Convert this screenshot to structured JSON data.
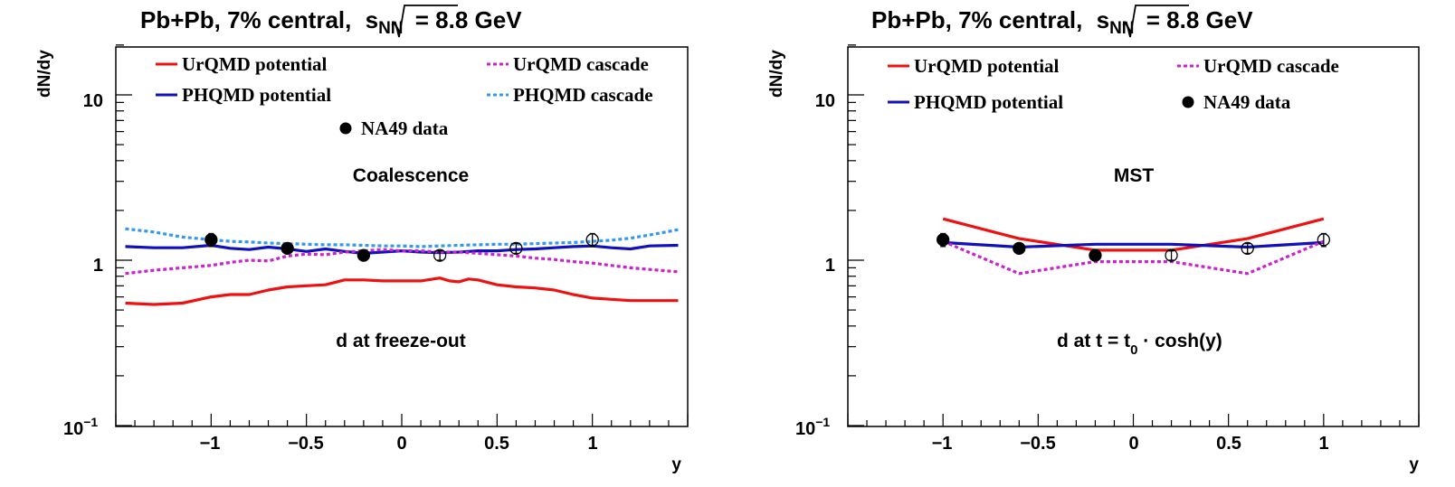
{
  "chart_data": [
    {
      "type": "line",
      "title": "Pb+Pb, 7% central, √sNN = 8.8 GeV",
      "title_parts": {
        "prefix": "Pb+Pb, 7% central,",
        "var": "s",
        "sub": "NN",
        "suffix": "= 8.8 GeV"
      },
      "xlabel": "y",
      "ylabel": "dN/dy",
      "xlim": [
        -1.5,
        1.5
      ],
      "ylim": [
        0.1,
        20
      ],
      "yscale": "log",
      "x_tick_labels": [
        "−1",
        "−0.5",
        "0",
        "0.5",
        "1"
      ],
      "y_tick_labels": {
        "top": "10",
        "mid": "1",
        "bottom_base": "10",
        "bottom_exp": "−1"
      },
      "annotations": {
        "method": "Coalescence",
        "condition": "d at freeze-out"
      },
      "legend": [
        {
          "name": "UrQMD potential",
          "color": "#ee1111",
          "style": "solid"
        },
        {
          "name": "UrQMD cascade",
          "color": "#cc22cc",
          "style": "dotted"
        },
        {
          "name": "PHQMD potential",
          "color": "#1111bb",
          "style": "solid"
        },
        {
          "name": "PHQMD cascade",
          "color": "#3399ee",
          "style": "dotted"
        },
        {
          "name": "NA49 data",
          "color": "#000000",
          "style": "marker"
        }
      ],
      "series": [
        {
          "name": "PHQMD cascade",
          "color": "#3399ee",
          "dashed": true,
          "x": [
            -1.45,
            -1.3,
            -1.15,
            -1.0,
            -0.9,
            -0.8,
            -0.7,
            -0.6,
            -0.5,
            -0.4,
            -0.3,
            -0.2,
            -0.1,
            0.0,
            0.1,
            0.2,
            0.3,
            0.4,
            0.5,
            0.6,
            0.7,
            0.8,
            0.9,
            1.0,
            1.1,
            1.2,
            1.3,
            1.45
          ],
          "y": [
            1.55,
            1.48,
            1.38,
            1.33,
            1.3,
            1.29,
            1.27,
            1.26,
            1.25,
            1.24,
            1.24,
            1.23,
            1.22,
            1.22,
            1.21,
            1.22,
            1.23,
            1.24,
            1.25,
            1.25,
            1.26,
            1.27,
            1.28,
            1.3,
            1.32,
            1.36,
            1.42,
            1.53
          ]
        },
        {
          "name": "PHQMD potential",
          "color": "#1111bb",
          "dashed": false,
          "x": [
            -1.45,
            -1.3,
            -1.15,
            -1.0,
            -0.9,
            -0.8,
            -0.7,
            -0.6,
            -0.5,
            -0.4,
            -0.3,
            -0.2,
            -0.1,
            0.0,
            0.1,
            0.2,
            0.3,
            0.4,
            0.5,
            0.6,
            0.7,
            0.8,
            0.9,
            1.0,
            1.1,
            1.2,
            1.3,
            1.45
          ],
          "y": [
            1.21,
            1.19,
            1.19,
            1.23,
            1.18,
            1.16,
            1.2,
            1.17,
            1.13,
            1.17,
            1.13,
            1.1,
            1.12,
            1.14,
            1.12,
            1.11,
            1.12,
            1.14,
            1.14,
            1.16,
            1.17,
            1.19,
            1.21,
            1.22,
            1.19,
            1.17,
            1.22,
            1.23
          ]
        },
        {
          "name": "UrQMD cascade",
          "color": "#cc22cc",
          "dashed": true,
          "x": [
            -1.45,
            -1.3,
            -1.15,
            -1.0,
            -0.9,
            -0.8,
            -0.7,
            -0.6,
            -0.5,
            -0.4,
            -0.3,
            -0.2,
            -0.1,
            0.0,
            0.1,
            0.2,
            0.3,
            0.4,
            0.5,
            0.6,
            0.7,
            0.8,
            0.9,
            1.0,
            1.1,
            1.2,
            1.3,
            1.45
          ],
          "y": [
            0.83,
            0.87,
            0.9,
            0.93,
            0.97,
            1.0,
            0.99,
            1.06,
            1.09,
            1.08,
            1.12,
            1.14,
            1.16,
            1.14,
            1.14,
            1.12,
            1.12,
            1.1,
            1.08,
            1.06,
            1.03,
            1.01,
            0.98,
            0.96,
            0.93,
            0.9,
            0.88,
            0.85
          ]
        },
        {
          "name": "UrQMD potential",
          "color": "#ee1111",
          "dashed": false,
          "x": [
            -1.45,
            -1.3,
            -1.15,
            -1.0,
            -0.9,
            -0.8,
            -0.7,
            -0.6,
            -0.5,
            -0.4,
            -0.3,
            -0.2,
            -0.1,
            0.0,
            0.1,
            0.2,
            0.25,
            0.3,
            0.35,
            0.4,
            0.5,
            0.6,
            0.7,
            0.8,
            0.9,
            1.0,
            1.1,
            1.2,
            1.3,
            1.45
          ],
          "y": [
            0.55,
            0.54,
            0.55,
            0.6,
            0.62,
            0.62,
            0.66,
            0.69,
            0.7,
            0.71,
            0.76,
            0.76,
            0.75,
            0.75,
            0.75,
            0.78,
            0.75,
            0.74,
            0.77,
            0.76,
            0.71,
            0.69,
            0.68,
            0.66,
            0.62,
            0.59,
            0.58,
            0.57,
            0.57,
            0.57
          ]
        }
      ],
      "data_points": [
        {
          "x": -1.0,
          "y": 1.33,
          "err": 0.12,
          "filled": true
        },
        {
          "x": -0.6,
          "y": 1.18,
          "err": 0.08,
          "filled": true
        },
        {
          "x": -0.2,
          "y": 1.07,
          "err": 0.07,
          "filled": true
        },
        {
          "x": 0.2,
          "y": 1.07,
          "err": 0.07,
          "filled": false
        },
        {
          "x": 0.6,
          "y": 1.18,
          "err": 0.08,
          "filled": false
        },
        {
          "x": 1.0,
          "y": 1.33,
          "err": 0.12,
          "filled": false
        }
      ]
    },
    {
      "type": "line",
      "title": "Pb+Pb, 7% central, √sNN = 8.8 GeV",
      "title_parts": {
        "prefix": "Pb+Pb, 7% central,",
        "var": "s",
        "sub": "NN",
        "suffix": "= 8.8 GeV"
      },
      "xlabel": "y",
      "ylabel": "dN/dy",
      "xlim": [
        -1.5,
        1.5
      ],
      "ylim": [
        0.1,
        20
      ],
      "yscale": "log",
      "x_tick_labels": [
        "−1",
        "−0.5",
        "0",
        "0.5",
        "1"
      ],
      "y_tick_labels": {
        "top": "10",
        "mid": "1",
        "bottom_base": "10",
        "bottom_exp": "−1"
      },
      "annotations": {
        "method": "MST",
        "condition_prefix": "d at t = t",
        "condition_sub": "0",
        "condition_suffix": " · cosh(y)"
      },
      "legend": [
        {
          "name": "UrQMD potential",
          "color": "#ee1111",
          "style": "solid"
        },
        {
          "name": "UrQMD cascade",
          "color": "#cc22cc",
          "style": "dotted"
        },
        {
          "name": "PHQMD potential",
          "color": "#1111bb",
          "style": "solid"
        },
        {
          "name": "NA49 data",
          "color": "#000000",
          "style": "marker"
        }
      ],
      "series": [
        {
          "name": "UrQMD potential",
          "color": "#ee1111",
          "dashed": false,
          "x": [
            -1.0,
            -0.6,
            -0.2,
            0.2,
            0.6,
            1.0
          ],
          "y": [
            1.78,
            1.35,
            1.15,
            1.15,
            1.35,
            1.78
          ]
        },
        {
          "name": "PHQMD potential",
          "color": "#1111bb",
          "dashed": false,
          "x": [
            -1.0,
            -0.6,
            -0.2,
            0.2,
            0.6,
            1.0
          ],
          "y": [
            1.28,
            1.2,
            1.25,
            1.25,
            1.2,
            1.28
          ]
        },
        {
          "name": "UrQMD cascade",
          "color": "#cc22cc",
          "dashed": true,
          "x": [
            -1.0,
            -0.6,
            -0.2,
            0.2,
            0.6,
            1.0
          ],
          "y": [
            1.3,
            0.83,
            0.98,
            0.98,
            0.83,
            1.3
          ]
        }
      ],
      "data_points": [
        {
          "x": -1.0,
          "y": 1.33,
          "err": 0.12,
          "filled": true
        },
        {
          "x": -0.6,
          "y": 1.18,
          "err": 0.08,
          "filled": true
        },
        {
          "x": -0.2,
          "y": 1.07,
          "err": 0.07,
          "filled": true
        },
        {
          "x": 0.2,
          "y": 1.07,
          "err": 0.07,
          "filled": false
        },
        {
          "x": 0.6,
          "y": 1.18,
          "err": 0.08,
          "filled": false
        },
        {
          "x": 1.0,
          "y": 1.33,
          "err": 0.12,
          "filled": false
        }
      ]
    }
  ]
}
